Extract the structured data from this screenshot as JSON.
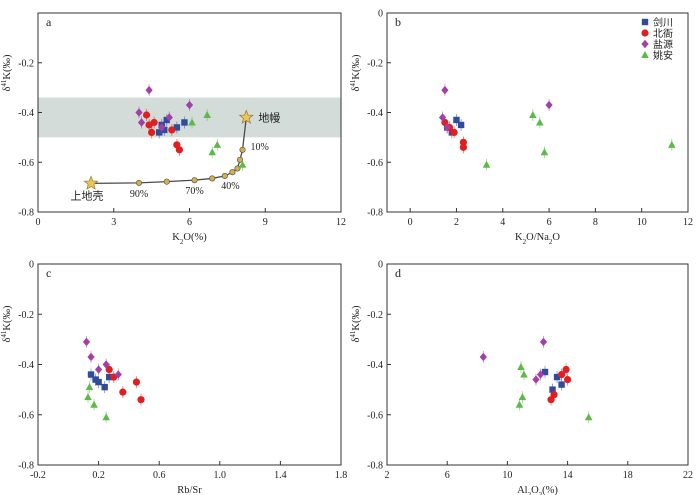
{
  "legend": [
    {
      "name": "剑川",
      "color": "#2f4b9c",
      "marker": "square"
    },
    {
      "name": "北衙",
      "color": "#e02020",
      "marker": "circle"
    },
    {
      "name": "盐源",
      "color": "#a340a8",
      "marker": "diamond"
    },
    {
      "name": "姚安",
      "color": "#5fb84a",
      "marker": "triangle"
    }
  ],
  "chart_data": [
    {
      "panel": "a",
      "type": "scatter",
      "xlabel": "K₂O(%)",
      "ylabel": "δ⁴¹K(‰)",
      "xlim": [
        0,
        12
      ],
      "ylim": [
        -0.8,
        0
      ],
      "xticks": [
        "0",
        "3",
        "6",
        "9",
        "12"
      ],
      "yticks": [
        "-0.8",
        "-0.6",
        "-0.4",
        "-0.2"
      ],
      "band": {
        "y": [
          -0.5,
          -0.34
        ],
        "color": "#d3dcd8"
      },
      "series": [
        {
          "name": "剑川",
          "points": [
            [
              4.9,
              -0.45
            ],
            [
              5.1,
              -0.43
            ],
            [
              5.5,
              -0.46
            ],
            [
              5.0,
              -0.47
            ],
            [
              5.8,
              -0.44
            ],
            [
              4.8,
              -0.48
            ]
          ]
        },
        {
          "name": "北衙",
          "points": [
            [
              4.3,
              -0.41
            ],
            [
              4.6,
              -0.44
            ],
            [
              4.5,
              -0.48
            ],
            [
              5.3,
              -0.47
            ],
            [
              5.5,
              -0.53
            ],
            [
              5.6,
              -0.55
            ],
            [
              4.4,
              -0.45
            ]
          ]
        },
        {
          "name": "盐源",
          "points": [
            [
              4.4,
              -0.31
            ],
            [
              4.0,
              -0.4
            ],
            [
              4.1,
              -0.44
            ],
            [
              6.0,
              -0.37
            ],
            [
              4.9,
              -0.46
            ],
            [
              5.2,
              -0.42
            ]
          ]
        },
        {
          "name": "姚安",
          "points": [
            [
              6.7,
              -0.41
            ],
            [
              6.1,
              -0.44
            ],
            [
              7.1,
              -0.53
            ],
            [
              6.9,
              -0.56
            ],
            [
              8.1,
              -0.61
            ]
          ]
        }
      ],
      "mixing_curve": [
        [
          2.1,
          -0.685
        ],
        [
          4.0,
          -0.683
        ],
        [
          5.1,
          -0.678
        ],
        [
          6.2,
          -0.672
        ],
        [
          6.9,
          -0.665
        ],
        [
          7.4,
          -0.655
        ],
        [
          7.7,
          -0.64
        ],
        [
          7.9,
          -0.625
        ],
        [
          8.0,
          -0.59
        ],
        [
          8.1,
          -0.55
        ],
        [
          8.25,
          -0.42
        ]
      ],
      "endmembers": [
        {
          "label": "上地壳",
          "point": [
            2.1,
            -0.685
          ]
        },
        {
          "label": "地幔",
          "point": [
            8.25,
            -0.42
          ]
        }
      ],
      "annotations": [
        {
          "text": "90%",
          "point": [
            4.0,
            -0.683
          ]
        },
        {
          "text": "70%",
          "point": [
            6.2,
            -0.672
          ]
        },
        {
          "text": "40%",
          "point": [
            7.5,
            -0.652
          ]
        },
        {
          "text": "10%",
          "point": [
            8.1,
            -0.55
          ]
        }
      ]
    },
    {
      "panel": "b",
      "type": "scatter",
      "xlabel": "K₂O/Na₂O",
      "ylabel": "δ⁴¹K(‰)",
      "xlim": [
        -1,
        12
      ],
      "ylim": [
        -0.8,
        0
      ],
      "xticks": [
        "0",
        "2",
        "4",
        "6",
        "8",
        "10",
        "12"
      ],
      "yticks": [
        "-0.8",
        "-0.6",
        "-0.4",
        "-0.2",
        "0"
      ],
      "series": [
        {
          "name": "剑川",
          "points": [
            [
              2.0,
              -0.43
            ],
            [
              2.2,
              -0.45
            ],
            [
              1.8,
              -0.48
            ],
            [
              1.6,
              -0.46
            ]
          ]
        },
        {
          "name": "北衙",
          "points": [
            [
              1.5,
              -0.44
            ],
            [
              1.9,
              -0.48
            ],
            [
              2.3,
              -0.52
            ],
            [
              2.3,
              -0.54
            ],
            [
              1.7,
              -0.46
            ]
          ]
        },
        {
          "name": "盐源",
          "points": [
            [
              1.5,
              -0.31
            ],
            [
              1.4,
              -0.42
            ],
            [
              1.6,
              -0.46
            ],
            [
              6.0,
              -0.37
            ]
          ]
        },
        {
          "name": "姚安",
          "points": [
            [
              3.3,
              -0.61
            ],
            [
              5.3,
              -0.41
            ],
            [
              5.6,
              -0.44
            ],
            [
              5.8,
              -0.56
            ],
            [
              11.3,
              -0.53
            ]
          ]
        }
      ]
    },
    {
      "panel": "c",
      "type": "scatter",
      "xlabel": "Rb/Sr",
      "ylabel": "δ⁴¹K(‰)",
      "xlim": [
        -0.2,
        1.8
      ],
      "ylim": [
        -0.8,
        0
      ],
      "xticks": [
        "-0.2",
        "0.2",
        "0.6",
        "1.0",
        "1.4",
        "1.8"
      ],
      "yticks": [
        "-0.8",
        "-0.6",
        "-0.4",
        "-0.2",
        "0"
      ],
      "series": [
        {
          "name": "剑川",
          "points": [
            [
              0.15,
              -0.44
            ],
            [
              0.18,
              -0.46
            ],
            [
              0.24,
              -0.49
            ],
            [
              0.27,
              -0.45
            ],
            [
              0.2,
              -0.47
            ]
          ]
        },
        {
          "name": "北衙",
          "points": [
            [
              0.27,
              -0.42
            ],
            [
              0.36,
              -0.51
            ],
            [
              0.45,
              -0.47
            ],
            [
              0.48,
              -0.54
            ],
            [
              0.3,
              -0.45
            ]
          ]
        },
        {
          "name": "盐源",
          "points": [
            [
              0.12,
              -0.31
            ],
            [
              0.15,
              -0.37
            ],
            [
              0.2,
              -0.42
            ],
            [
              0.33,
              -0.44
            ],
            [
              0.25,
              -0.4
            ]
          ]
        },
        {
          "name": "姚安",
          "points": [
            [
              0.13,
              -0.53
            ],
            [
              0.17,
              -0.56
            ],
            [
              0.25,
              -0.61
            ],
            [
              0.14,
              -0.49
            ]
          ]
        }
      ]
    },
    {
      "panel": "d",
      "type": "scatter",
      "xlabel": "Al₂O₃(%)",
      "ylabel": "δ⁴¹K(‰)",
      "xlim": [
        2,
        22
      ],
      "ylim": [
        -0.8,
        0
      ],
      "xticks": [
        "2",
        "6",
        "10",
        "14",
        "18",
        "22"
      ],
      "yticks": [
        "-0.8",
        "-0.6",
        "-0.4",
        "-0.2",
        "0"
      ],
      "series": [
        {
          "name": "剑川",
          "points": [
            [
              13.3,
              -0.45
            ],
            [
              13.6,
              -0.48
            ],
            [
              12.5,
              -0.43
            ],
            [
              13.0,
              -0.5
            ]
          ]
        },
        {
          "name": "北衙",
          "points": [
            [
              13.9,
              -0.42
            ],
            [
              14.0,
              -0.46
            ],
            [
              13.1,
              -0.52
            ],
            [
              12.9,
              -0.54
            ],
            [
              13.6,
              -0.44
            ]
          ]
        },
        {
          "name": "盐源",
          "points": [
            [
              8.4,
              -0.37
            ],
            [
              12.4,
              -0.31
            ],
            [
              11.9,
              -0.46
            ],
            [
              12.2,
              -0.44
            ]
          ]
        },
        {
          "name": "姚安",
          "points": [
            [
              10.9,
              -0.41
            ],
            [
              11.1,
              -0.44
            ],
            [
              11.0,
              -0.53
            ],
            [
              10.8,
              -0.56
            ],
            [
              15.4,
              -0.61
            ]
          ]
        }
      ]
    }
  ],
  "panel_letters": {
    "a": "a",
    "b": "b",
    "c": "c",
    "d": "d"
  }
}
